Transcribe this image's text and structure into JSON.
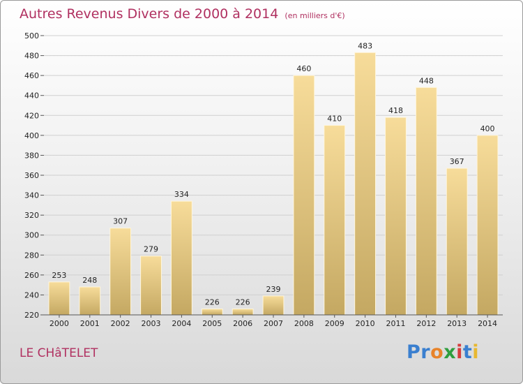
{
  "header": {
    "title": "Autres Revenus Divers de 2000 à 2014",
    "unit": "(en milliers d'€)"
  },
  "footer": {
    "place": "LE CHâTELET",
    "logo_letters": [
      {
        "ch": "P",
        "color": "#3a7fcf"
      },
      {
        "ch": "r",
        "color": "#3a7fcf"
      },
      {
        "ch": "o",
        "color": "#e8832a"
      },
      {
        "ch": "x",
        "color": "#2e9e3e"
      },
      {
        "ch": "i",
        "color": "#d63c3c"
      },
      {
        "ch": "t",
        "color": "#3a7fcf"
      },
      {
        "ch": "i",
        "color": "#e8b830"
      }
    ]
  },
  "chart_data": {
    "type": "bar",
    "title": "Autres Revenus Divers de 2000 à 2014",
    "xlabel": "",
    "ylabel": "",
    "categories": [
      "2000",
      "2001",
      "2002",
      "2003",
      "2004",
      "2005",
      "2006",
      "2007",
      "2008",
      "2009",
      "2010",
      "2011",
      "2012",
      "2013",
      "2014"
    ],
    "values": [
      253,
      248,
      307,
      279,
      334,
      226,
      226,
      239,
      460,
      410,
      483,
      418,
      448,
      367,
      400
    ],
    "ylim": [
      220,
      500
    ],
    "yticks": [
      220,
      240,
      260,
      280,
      300,
      320,
      340,
      360,
      380,
      400,
      420,
      440,
      460,
      480,
      500
    ],
    "grid": true,
    "bar_color_top": "#f7dc9a",
    "bar_color_bottom": "#c4a862"
  }
}
